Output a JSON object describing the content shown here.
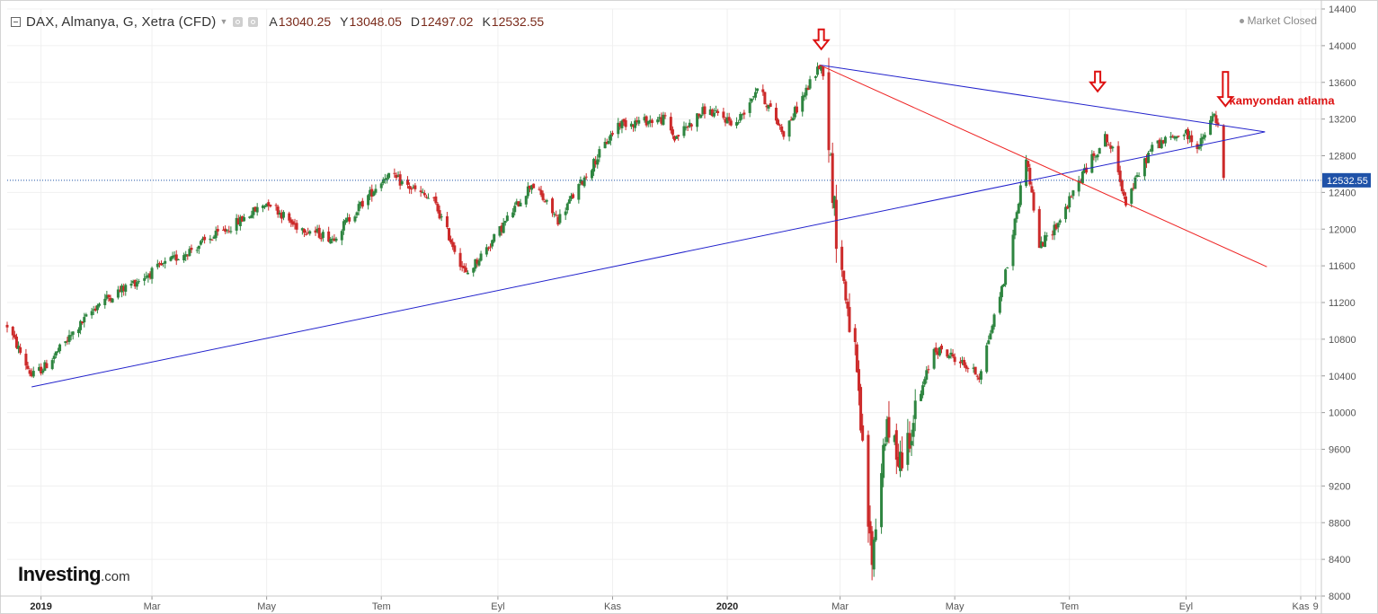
{
  "header": {
    "title": "DAX, Almanya, G, Xetra (CFD)",
    "ohlc": [
      {
        "label": "A",
        "value": "13040.25"
      },
      {
        "label": "Y",
        "value": "13048.05"
      },
      {
        "label": "D",
        "value": "12497.02"
      },
      {
        "label": "K",
        "value": "12532.55"
      }
    ]
  },
  "market_status": "Market Closed",
  "logo": {
    "main": "Investing",
    "suffix": ".com"
  },
  "icons": [
    "collapse-icon",
    "chevron-down-icon",
    "settings-icon",
    "gear-icon",
    "status-dot-icon",
    "down-arrow-icon"
  ],
  "colors": {
    "up": "#2e8540",
    "down": "#cc2a2a",
    "trend_blue": "#2222cc",
    "trend_red": "#ee2222",
    "arrow": "#dd1111",
    "annotation": "#dd1111",
    "last_price_bg": "#1f52a8"
  },
  "chart_data": {
    "type": "candlestick",
    "title": "DAX, Almanya, G, Xetra (CFD)",
    "ylim": [
      8000,
      14400
    ],
    "y_ticks": [
      14400,
      14000,
      13600,
      13200,
      12800,
      12400,
      12000,
      11600,
      11200,
      10800,
      10400,
      10000,
      9600,
      9200,
      8800,
      8400,
      8000
    ],
    "x_tick_labels": [
      "2019",
      "Mar",
      "May",
      "Tem",
      "Eyl",
      "Kas",
      "2020",
      "Mar",
      "May",
      "Tem",
      "Eyl",
      "Kas",
      "9"
    ],
    "bold_x_labels": [
      "2019",
      "2020"
    ],
    "last_price": "12532.55",
    "x_range": [
      "2018-12-14",
      "2020-11-12"
    ],
    "anchors": [
      [
        "2018-12-14",
        10950
      ],
      [
        "2018-12-27",
        10400
      ],
      [
        "2019-01-03",
        10500
      ],
      [
        "2019-02-01",
        11200
      ],
      [
        "2019-03-15",
        11700
      ],
      [
        "2019-04-10",
        12000
      ],
      [
        "2019-05-02",
        12300
      ],
      [
        "2019-05-15",
        12050
      ],
      [
        "2019-06-05",
        11900
      ],
      [
        "2019-07-04",
        12600
      ],
      [
        "2019-07-29",
        12300
      ],
      [
        "2019-08-15",
        11500
      ],
      [
        "2019-08-30",
        11900
      ],
      [
        "2019-09-19",
        12500
      ],
      [
        "2019-10-03",
        12100
      ],
      [
        "2019-11-04",
        13150
      ],
      [
        "2019-11-29",
        13200
      ],
      [
        "2019-12-04",
        12990
      ],
      [
        "2019-12-20",
        13300
      ],
      [
        "2020-01-06",
        13150
      ],
      [
        "2020-01-17",
        13550
      ],
      [
        "2020-01-31",
        13050
      ],
      [
        "2020-02-19",
        13780
      ],
      [
        "2020-02-21",
        13720
      ],
      [
        "2020-02-28",
        11950
      ],
      [
        "2020-03-09",
        10600
      ],
      [
        "2020-03-16",
        8800
      ],
      [
        "2020-03-18",
        8400
      ],
      [
        "2020-03-25",
        9800
      ],
      [
        "2020-04-03",
        9500
      ],
      [
        "2020-04-20",
        10700
      ],
      [
        "2020-05-01",
        10600
      ],
      [
        "2020-05-14",
        10400
      ],
      [
        "2020-05-29",
        11600
      ],
      [
        "2020-06-08",
        12800
      ],
      [
        "2020-06-15",
        11800
      ],
      [
        "2020-06-26",
        12100
      ],
      [
        "2020-07-08",
        12600
      ],
      [
        "2020-07-20",
        13000
      ],
      [
        "2020-07-24",
        12850
      ],
      [
        "2020-07-31",
        12300
      ],
      [
        "2020-08-14",
        12900
      ],
      [
        "2020-08-31",
        13050
      ],
      [
        "2020-09-08",
        12900
      ],
      [
        "2020-09-16",
        13250
      ],
      [
        "2020-09-18",
        13100
      ],
      [
        "2020-09-21",
        12550
      ]
    ],
    "trendlines": [
      {
        "color": "blue",
        "from": [
          "2018-12-27",
          10280
        ],
        "to": [
          "2020-10-13",
          13060
        ]
      },
      {
        "color": "blue",
        "from": [
          "2020-02-19",
          13790
        ],
        "to": [
          "2020-10-13",
          13060
        ]
      },
      {
        "color": "red",
        "from": [
          "2020-02-19",
          13790
        ],
        "to": [
          "2020-10-14",
          11590
        ]
      }
    ],
    "markers": [
      {
        "type": "down-arrow",
        "date": "2020-02-20",
        "value": 14060
      },
      {
        "type": "down-arrow",
        "date": "2020-07-16",
        "value": 13600
      },
      {
        "type": "down-arrow",
        "date": "2020-09-22",
        "value": 13440
      }
    ],
    "annotations": [
      {
        "text": "kamyondan atlama",
        "date": "2020-09-24",
        "value": 13360
      }
    ]
  }
}
